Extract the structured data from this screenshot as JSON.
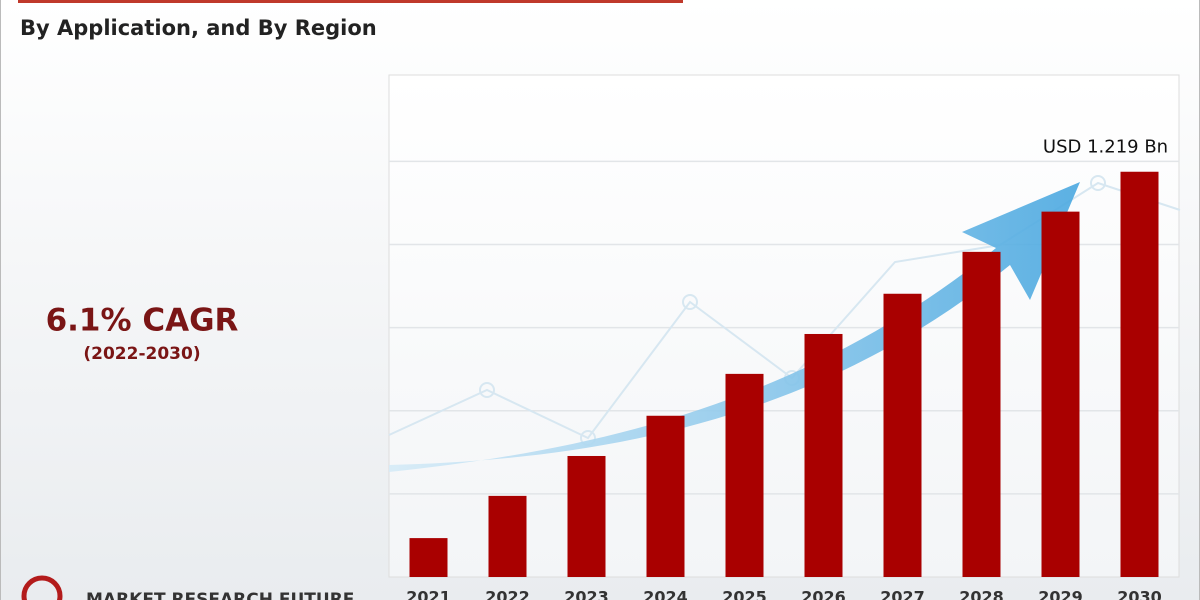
{
  "chart_data": {
    "type": "bar",
    "subtitle": "By Application, and By Region",
    "cagr": "6.1% CAGR",
    "period": "(2022-2030)",
    "annotation": "USD 1.219 Bn",
    "brand": "MARKET RESEARCH FUTURE",
    "categories": [
      "2021",
      "2022",
      "2023",
      "2024",
      "2025",
      "2026",
      "2027",
      "2028",
      "2029",
      "2030"
    ],
    "values": [
      0.117,
      0.244,
      0.364,
      0.485,
      0.611,
      0.731,
      0.852,
      0.978,
      1.099,
      1.219
    ],
    "color": "#a90000",
    "ylim": [
      0,
      1.51
    ],
    "yticks": [
      0.25,
      0.5,
      0.75,
      1,
      1.25
    ],
    "grid": true
  }
}
